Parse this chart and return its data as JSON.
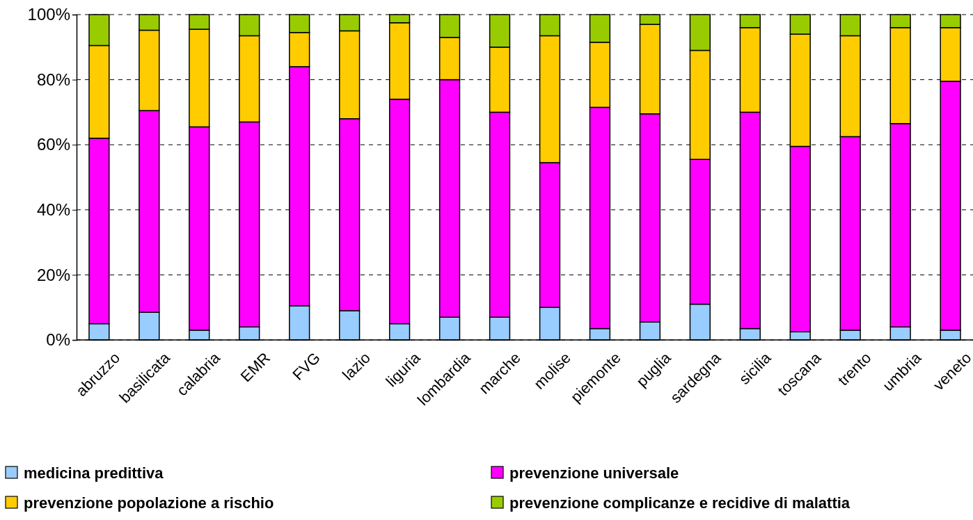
{
  "chart_data": {
    "type": "bar",
    "stacked": true,
    "categories": [
      "abruzzo",
      "basilicata",
      "calabria",
      "EMR",
      "FVG",
      "lazio",
      "liguria",
      "lombardia",
      "marche",
      "molise",
      "piemonte",
      "puglia",
      "sardegna",
      "sicilia",
      "toscana",
      "trento",
      "umbria",
      "veneto"
    ],
    "series": [
      {
        "name": "medicina predittiva",
        "color": "#99ccff",
        "values": [
          5,
          8.5,
          3,
          4,
          10.5,
          9,
          5,
          7,
          7,
          10,
          3.5,
          5.5,
          11,
          3.5,
          2.5,
          3,
          4,
          3
        ]
      },
      {
        "name": "prevenzione universale",
        "color": "#ff00ff",
        "values": [
          57,
          62,
          62.5,
          63,
          73.5,
          59,
          69,
          73,
          63,
          44.5,
          68,
          64,
          44.5,
          66.5,
          57,
          59.5,
          62.5,
          76.5
        ]
      },
      {
        "name": "prevenzione popolazione a rischio",
        "color": "#ffcc00",
        "values": [
          28.5,
          24.7,
          30,
          26.5,
          10.5,
          27,
          23.5,
          13,
          20,
          39,
          20,
          27.5,
          33.5,
          26,
          34.5,
          31,
          29.5,
          16.5
        ]
      },
      {
        "name": "prevenzione complicanze e recidive di malattia",
        "color": "#99cc00",
        "values": [
          9.5,
          4.8,
          4.5,
          6.5,
          5.5,
          5,
          2.5,
          7,
          10,
          6.5,
          8.5,
          3,
          11,
          4,
          6,
          6.5,
          4,
          4
        ]
      }
    ],
    "ylim": [
      0,
      100
    ],
    "yticks": [
      {
        "value": 0,
        "label": "0%"
      },
      {
        "value": 20,
        "label": "20%"
      },
      {
        "value": 40,
        "label": "40%"
      },
      {
        "value": 60,
        "label": "60%"
      },
      {
        "value": 80,
        "label": "80%"
      },
      {
        "value": 100,
        "label": "100%"
      }
    ],
    "grid": "y",
    "legend": "bottom"
  }
}
